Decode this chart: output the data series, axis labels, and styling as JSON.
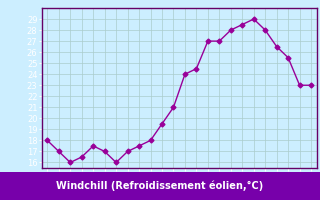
{
  "x": [
    0,
    1,
    2,
    3,
    4,
    5,
    6,
    7,
    8,
    9,
    10,
    11,
    12,
    13,
    14,
    15,
    16,
    17,
    18,
    19,
    20,
    21,
    22,
    23
  ],
  "y": [
    18,
    17,
    16,
    16.5,
    17.5,
    17,
    16,
    17,
    17.5,
    18,
    19.5,
    21,
    24,
    24.5,
    27,
    27,
    28,
    28.5,
    29,
    28,
    26.5,
    25.5,
    23,
    23
  ],
  "line_color": "#990099",
  "marker": "D",
  "markersize": 2.5,
  "linewidth": 1.0,
  "bg_color": "#cceeff",
  "grid_color": "#aacccc",
  "footer_bg": "#7700aa",
  "footer_text": "Windchill (Refroidissement éolien,°C)",
  "footer_fontsize": 7,
  "ylim": [
    15.5,
    30
  ],
  "xlim": [
    -0.5,
    23.5
  ],
  "yticks": [
    16,
    17,
    18,
    19,
    20,
    21,
    22,
    23,
    24,
    25,
    26,
    27,
    28,
    29
  ],
  "xticks": [
    0,
    1,
    2,
    3,
    4,
    5,
    6,
    7,
    8,
    9,
    10,
    11,
    12,
    13,
    14,
    15,
    16,
    17,
    18,
    19,
    20,
    21,
    22,
    23
  ],
  "tick_fontsize": 6,
  "ytick_color": "white",
  "xtick_color": "white",
  "spine_color": "#660066"
}
